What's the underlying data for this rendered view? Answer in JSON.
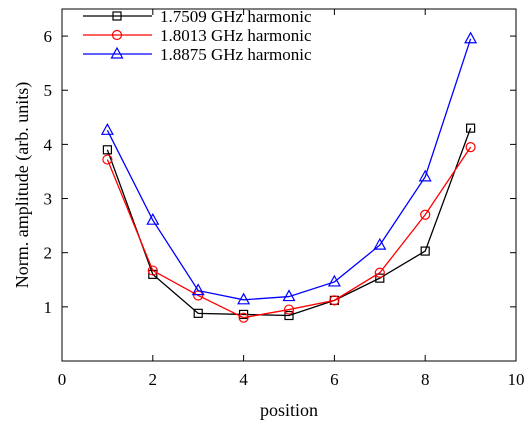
{
  "chart_data": {
    "type": "line",
    "xlabel": "position",
    "ylabel": "Norm. amplitude (arb. units)",
    "xlim": [
      0,
      10
    ],
    "ylim": [
      0,
      6.5
    ],
    "xticks": [
      "0",
      "2",
      "4",
      "6",
      "8",
      "10"
    ],
    "yticks": [
      "1",
      "2",
      "3",
      "4",
      "5",
      "6"
    ],
    "grid": false,
    "legend_position": "top-left",
    "x": [
      1,
      2,
      3,
      4,
      5,
      6,
      7,
      8,
      9
    ],
    "series": [
      {
        "name": "1.7509 GHz harmonic",
        "color": "#000000",
        "marker": "square",
        "values": [
          3.9,
          1.6,
          0.88,
          0.86,
          0.84,
          1.12,
          1.53,
          2.03,
          4.3
        ]
      },
      {
        "name": "1.8013 GHz harmonic",
        "color": "#ff0000",
        "marker": "circle",
        "values": [
          3.72,
          1.67,
          1.21,
          0.8,
          0.95,
          1.12,
          1.63,
          2.7,
          3.95
        ]
      },
      {
        "name": "1.8875 GHz harmonic",
        "color": "#0000ff",
        "marker": "triangle",
        "values": [
          4.26,
          2.6,
          1.3,
          1.13,
          1.19,
          1.46,
          2.14,
          3.4,
          5.95
        ]
      }
    ]
  }
}
